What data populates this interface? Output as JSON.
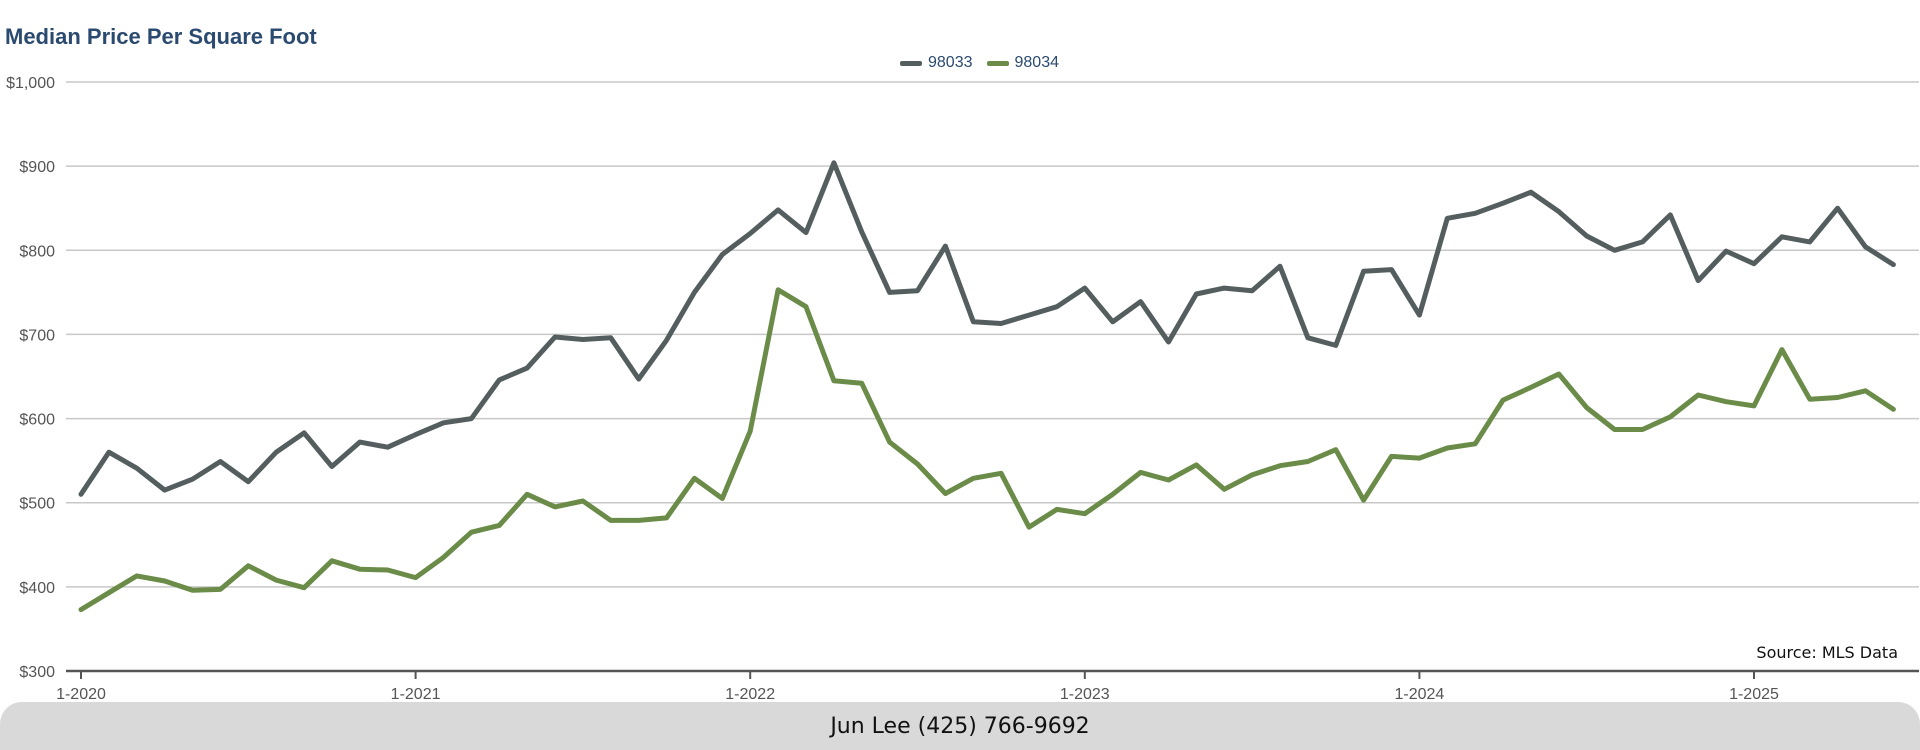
{
  "chart_data": {
    "type": "line",
    "title": "Median Price Per Square Foot",
    "xlabel": "",
    "ylabel": "",
    "ylim": [
      300,
      1000
    ],
    "y_ticks": [
      "$300",
      "$400",
      "$500",
      "$600",
      "$700",
      "$800",
      "$900",
      "$1,000"
    ],
    "y_tick_values": [
      300,
      400,
      500,
      600,
      700,
      800,
      900,
      1000
    ],
    "x_ticks": [
      "1-2020",
      "1-2021",
      "1-2022",
      "1-2023",
      "1-2024",
      "1-2025"
    ],
    "x_tick_index": [
      0,
      12,
      24,
      36,
      48,
      60
    ],
    "x_start": "1-2020",
    "grid": true,
    "legend_placement": "top-center",
    "series": [
      {
        "name": "98033",
        "color": "#555e5e",
        "values": [
          510,
          560,
          541,
          515,
          528,
          549,
          525,
          560,
          583,
          543,
          572,
          566,
          581,
          595,
          600,
          646,
          660,
          697,
          694,
          696,
          647,
          693,
          750,
          795,
          820,
          848,
          821,
          904,
          822,
          750,
          752,
          805,
          715,
          713,
          723,
          733,
          755,
          715,
          739,
          691,
          748,
          755,
          752,
          781,
          696,
          687,
          775,
          777,
          723,
          838,
          844,
          856,
          869,
          846,
          817,
          800,
          810,
          842,
          764,
          799,
          784,
          816,
          810,
          850,
          804,
          783
        ]
      },
      {
        "name": "98034",
        "color": "#6a8c48",
        "values": [
          373,
          393,
          413,
          407,
          396,
          397,
          425,
          408,
          399,
          431,
          421,
          420,
          411,
          435,
          465,
          473,
          510,
          495,
          502,
          479,
          479,
          482,
          529,
          505,
          585,
          753,
          733,
          645,
          642,
          572,
          546,
          511,
          529,
          535,
          471,
          492,
          487,
          510,
          536,
          527,
          545,
          516,
          533,
          544,
          549,
          563,
          503,
          555,
          553,
          565,
          570,
          622,
          637,
          653,
          613,
          587,
          587,
          602,
          628,
          620,
          615,
          682,
          623,
          625,
          633,
          611
        ]
      }
    ]
  },
  "source_text": "Source: MLS Data",
  "footer_text": "Jun Lee (425) 766-9692"
}
